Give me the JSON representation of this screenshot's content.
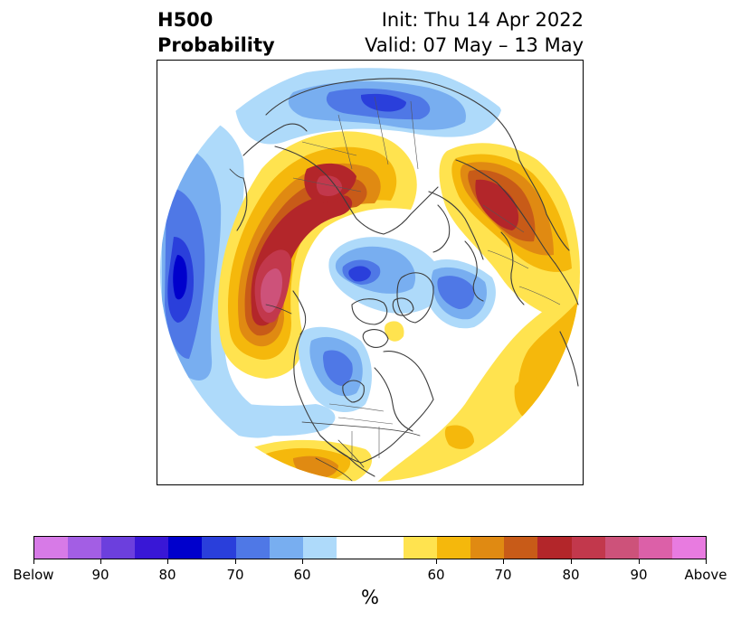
{
  "title": {
    "left_line1": "H500",
    "left_line2": "Probability",
    "right_line1": "Init: Thu 14 Apr 2022",
    "right_line2": "Valid: 07 May – 13 May"
  },
  "colorbar": {
    "unit": "%",
    "colors": [
      "#d77ae7",
      "#a35ee4",
      "#6c3fdd",
      "#3917d6",
      "#0000cc",
      "#2a3fdb",
      "#4f78e6",
      "#78aef0",
      "#aedafa",
      "#ffffff",
      "#ffe34f",
      "#f5b80c",
      "#e08a12",
      "#c85b18",
      "#b3262a",
      "#c2384c",
      "#cd527a",
      "#dc60a8",
      "#e87be0"
    ],
    "tick_labels": [
      "Below",
      "90",
      "80",
      "70",
      "60",
      "60",
      "70",
      "80",
      "90",
      "Above"
    ]
  },
  "map": {
    "projection": "north-polar-stereographic",
    "field": "500 hPa height anomaly probability"
  }
}
